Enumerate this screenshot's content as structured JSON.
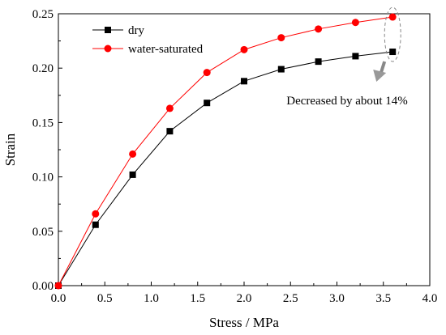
{
  "chart_data": {
    "type": "line",
    "xlabel": "Stress / MPa",
    "ylabel": "Strain",
    "xlim": [
      0,
      4.0
    ],
    "ylim": [
      0,
      0.25
    ],
    "xticks": [
      "0.0",
      "0.5",
      "1.0",
      "1.5",
      "2.0",
      "2.5",
      "3.0",
      "3.5",
      "4.0"
    ],
    "yticks": [
      "0.00",
      "0.05",
      "0.10",
      "0.15",
      "0.20",
      "0.25"
    ],
    "grid": false,
    "legend_position": "top-left",
    "x": [
      0,
      0.4,
      0.8,
      1.2,
      1.6,
      2.0,
      2.4,
      2.8,
      3.2,
      3.6
    ],
    "series": [
      {
        "name": "dry",
        "marker": "square",
        "color": "#000000",
        "values": [
          0.0,
          0.056,
          0.102,
          0.142,
          0.168,
          0.188,
          0.199,
          0.206,
          0.211,
          0.215
        ]
      },
      {
        "name": "water-saturated",
        "marker": "circle",
        "color": "#ff0000",
        "values": [
          0.0,
          0.066,
          0.121,
          0.163,
          0.196,
          0.217,
          0.228,
          0.236,
          0.242,
          0.247
        ]
      }
    ],
    "annotation": {
      "text": "Decreased by about 14%",
      "x": 3.6
    }
  }
}
